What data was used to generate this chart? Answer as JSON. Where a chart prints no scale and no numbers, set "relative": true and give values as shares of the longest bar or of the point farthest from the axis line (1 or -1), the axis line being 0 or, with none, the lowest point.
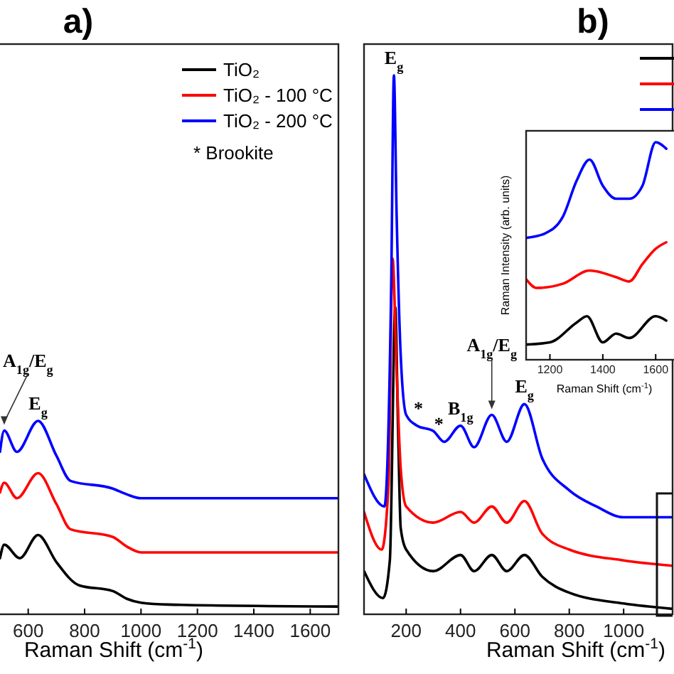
{
  "chart_data": [
    {
      "type": "line",
      "title": "a)",
      "xlabel": "Raman Shift (cm$^{-1}$)",
      "relative": true,
      "xlim": [
        500,
        1700
      ],
      "xticks": [
        600,
        800,
        1000,
        1200,
        1400,
        1600
      ],
      "legend": "top right",
      "series": [
        {
          "name": "TiO₂",
          "color": "#000000",
          "x": [
            500,
            515,
            570,
            635,
            700,
            780,
            900,
            950,
            1000,
            1100,
            1700
          ],
          "values": [
            0.29,
            0.36,
            0.29,
            0.41,
            0.27,
            0.15,
            0.12,
            0.08,
            0.06,
            0.05,
            0.04
          ]
        },
        {
          "name": "TiO₂ - 100 °C",
          "color": "#ff0000",
          "x": [
            500,
            515,
            560,
            635,
            700,
            750,
            900,
            950,
            1000,
            1700
          ],
          "values": [
            0.63,
            0.68,
            0.6,
            0.73,
            0.57,
            0.44,
            0.4,
            0.35,
            0.32,
            0.32
          ]
        },
        {
          "name": "TiO₂ - 200 °C",
          "color": "#0000ff",
          "x": [
            500,
            515,
            560,
            635,
            700,
            750,
            900,
            950,
            1000,
            1700
          ],
          "values": [
            0.84,
            0.95,
            0.84,
            1.0,
            0.82,
            0.69,
            0.65,
            0.62,
            0.6,
            0.6
          ]
        }
      ],
      "annotations": [
        {
          "text": "A$_{1g}$/E$_{g}$",
          "x": 515,
          "y": 0.95
        },
        {
          "text": "E$_{g}$",
          "x": 635,
          "y": 1.0
        },
        "* Brookite"
      ]
    },
    {
      "type": "line",
      "title": "b)",
      "xlabel": "Raman Shift (cm$^{-1}$)",
      "relative": true,
      "xlim": [
        45,
        1180
      ],
      "xticks": [
        200,
        400,
        600,
        800,
        1000
      ],
      "legend": "top right",
      "series": [
        {
          "color": "#000000",
          "x": [
            45,
            115,
            140,
            160,
            170,
            180,
            200,
            300,
            400,
            450,
            515,
            570,
            635,
            700,
            800,
            1000,
            1180
          ],
          "values": [
            0.08,
            0.03,
            0.1,
            0.57,
            0.35,
            0.16,
            0.12,
            0.08,
            0.11,
            0.08,
            0.11,
            0.08,
            0.11,
            0.07,
            0.04,
            0.02,
            0.01
          ]
        },
        {
          "color": "#ff0000",
          "x": [
            45,
            110,
            135,
            150,
            165,
            180,
            200,
            300,
            400,
            450,
            515,
            570,
            635,
            700,
            800,
            1000,
            1180
          ],
          "values": [
            0.19,
            0.12,
            0.24,
            0.66,
            0.45,
            0.27,
            0.2,
            0.17,
            0.19,
            0.17,
            0.2,
            0.17,
            0.21,
            0.15,
            0.12,
            0.1,
            0.09
          ]
        },
        {
          "color": "#0000ff",
          "x": [
            45,
            120,
            145,
            155,
            165,
            180,
            200,
            240,
            300,
            340,
            400,
            450,
            515,
            570,
            635,
            700,
            800,
            900,
            1000,
            1180
          ],
          "values": [
            0.26,
            0.2,
            0.61,
            1.0,
            0.74,
            0.48,
            0.37,
            0.35,
            0.34,
            0.32,
            0.35,
            0.31,
            0.37,
            0.32,
            0.39,
            0.29,
            0.23,
            0.2,
            0.18,
            0.18
          ]
        }
      ],
      "annotations": [
        {
          "text": "E$_{g}$",
          "x": 155,
          "y": 1.0
        },
        {
          "text": "*",
          "x": 245,
          "y": 0.35
        },
        {
          "text": "*",
          "x": 320,
          "y": 0.32
        },
        {
          "text": "B$_{1g}$",
          "x": 400,
          "y": 0.35
        },
        {
          "text": "A$_{1g}$/E$_{g}$",
          "x": 515,
          "y": 0.37
        },
        {
          "text": "E$_{g}$",
          "x": 635,
          "y": 0.39
        }
      ]
    },
    {
      "type": "line",
      "xlabel": "Raman Shift (cm$^{-1}$)",
      "ylabel": "Raman Intensity (arb. units)",
      "relative": true,
      "xlim": [
        1110,
        1680
      ],
      "xticks": [
        1200,
        1400,
        1600
      ],
      "series": [
        {
          "color": "#000000",
          "x": [
            1110,
            1200,
            1300,
            1340,
            1400,
            1450,
            1500,
            1600,
            1640
          ],
          "values": [
            0.07,
            0.08,
            0.17,
            0.2,
            0.08,
            0.12,
            0.1,
            0.2,
            0.18
          ]
        },
        {
          "color": "#ff0000",
          "x": [
            1110,
            1150,
            1250,
            1350,
            1450,
            1500,
            1550,
            1600,
            1640
          ],
          "values": [
            0.37,
            0.33,
            0.35,
            0.41,
            0.38,
            0.36,
            0.44,
            0.51,
            0.54
          ]
        },
        {
          "color": "#0000ff",
          "x": [
            1110,
            1180,
            1250,
            1300,
            1350,
            1400,
            1450,
            1500,
            1550,
            1600,
            1640
          ],
          "values": [
            0.56,
            0.58,
            0.66,
            0.82,
            0.92,
            0.8,
            0.74,
            0.74,
            0.8,
            1.0,
            0.97
          ]
        }
      ]
    }
  ]
}
